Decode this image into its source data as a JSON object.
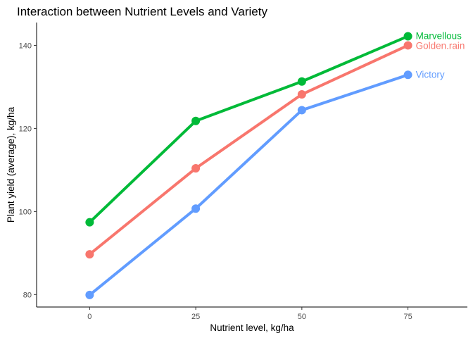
{
  "chart_data": {
    "type": "line",
    "title": "Interaction between Nutrient Levels and Variety",
    "xlabel": "Nutrient level, kg/ha",
    "ylabel": "Plant yield (average), kg/ha",
    "x": [
      0,
      25,
      50,
      75
    ],
    "xlim": [
      -12.5,
      89
    ],
    "ylim": [
      77,
      145.5
    ],
    "x_ticks": [
      "0",
      "25",
      "50",
      "75"
    ],
    "y_ticks": [
      "80",
      "100",
      "120",
      "140"
    ],
    "grid": false,
    "legend": "direct labels at line ends",
    "series": [
      {
        "name": "Golden.rain",
        "color": "#F8766D",
        "values": [
          89.7,
          110.4,
          128.2,
          140.0
        ]
      },
      {
        "name": "Marvellous",
        "color": "#00BA38",
        "values": [
          97.4,
          121.8,
          131.3,
          142.2
        ]
      },
      {
        "name": "Victory",
        "color": "#619CFF",
        "values": [
          79.9,
          100.7,
          124.4,
          132.9
        ]
      }
    ]
  }
}
